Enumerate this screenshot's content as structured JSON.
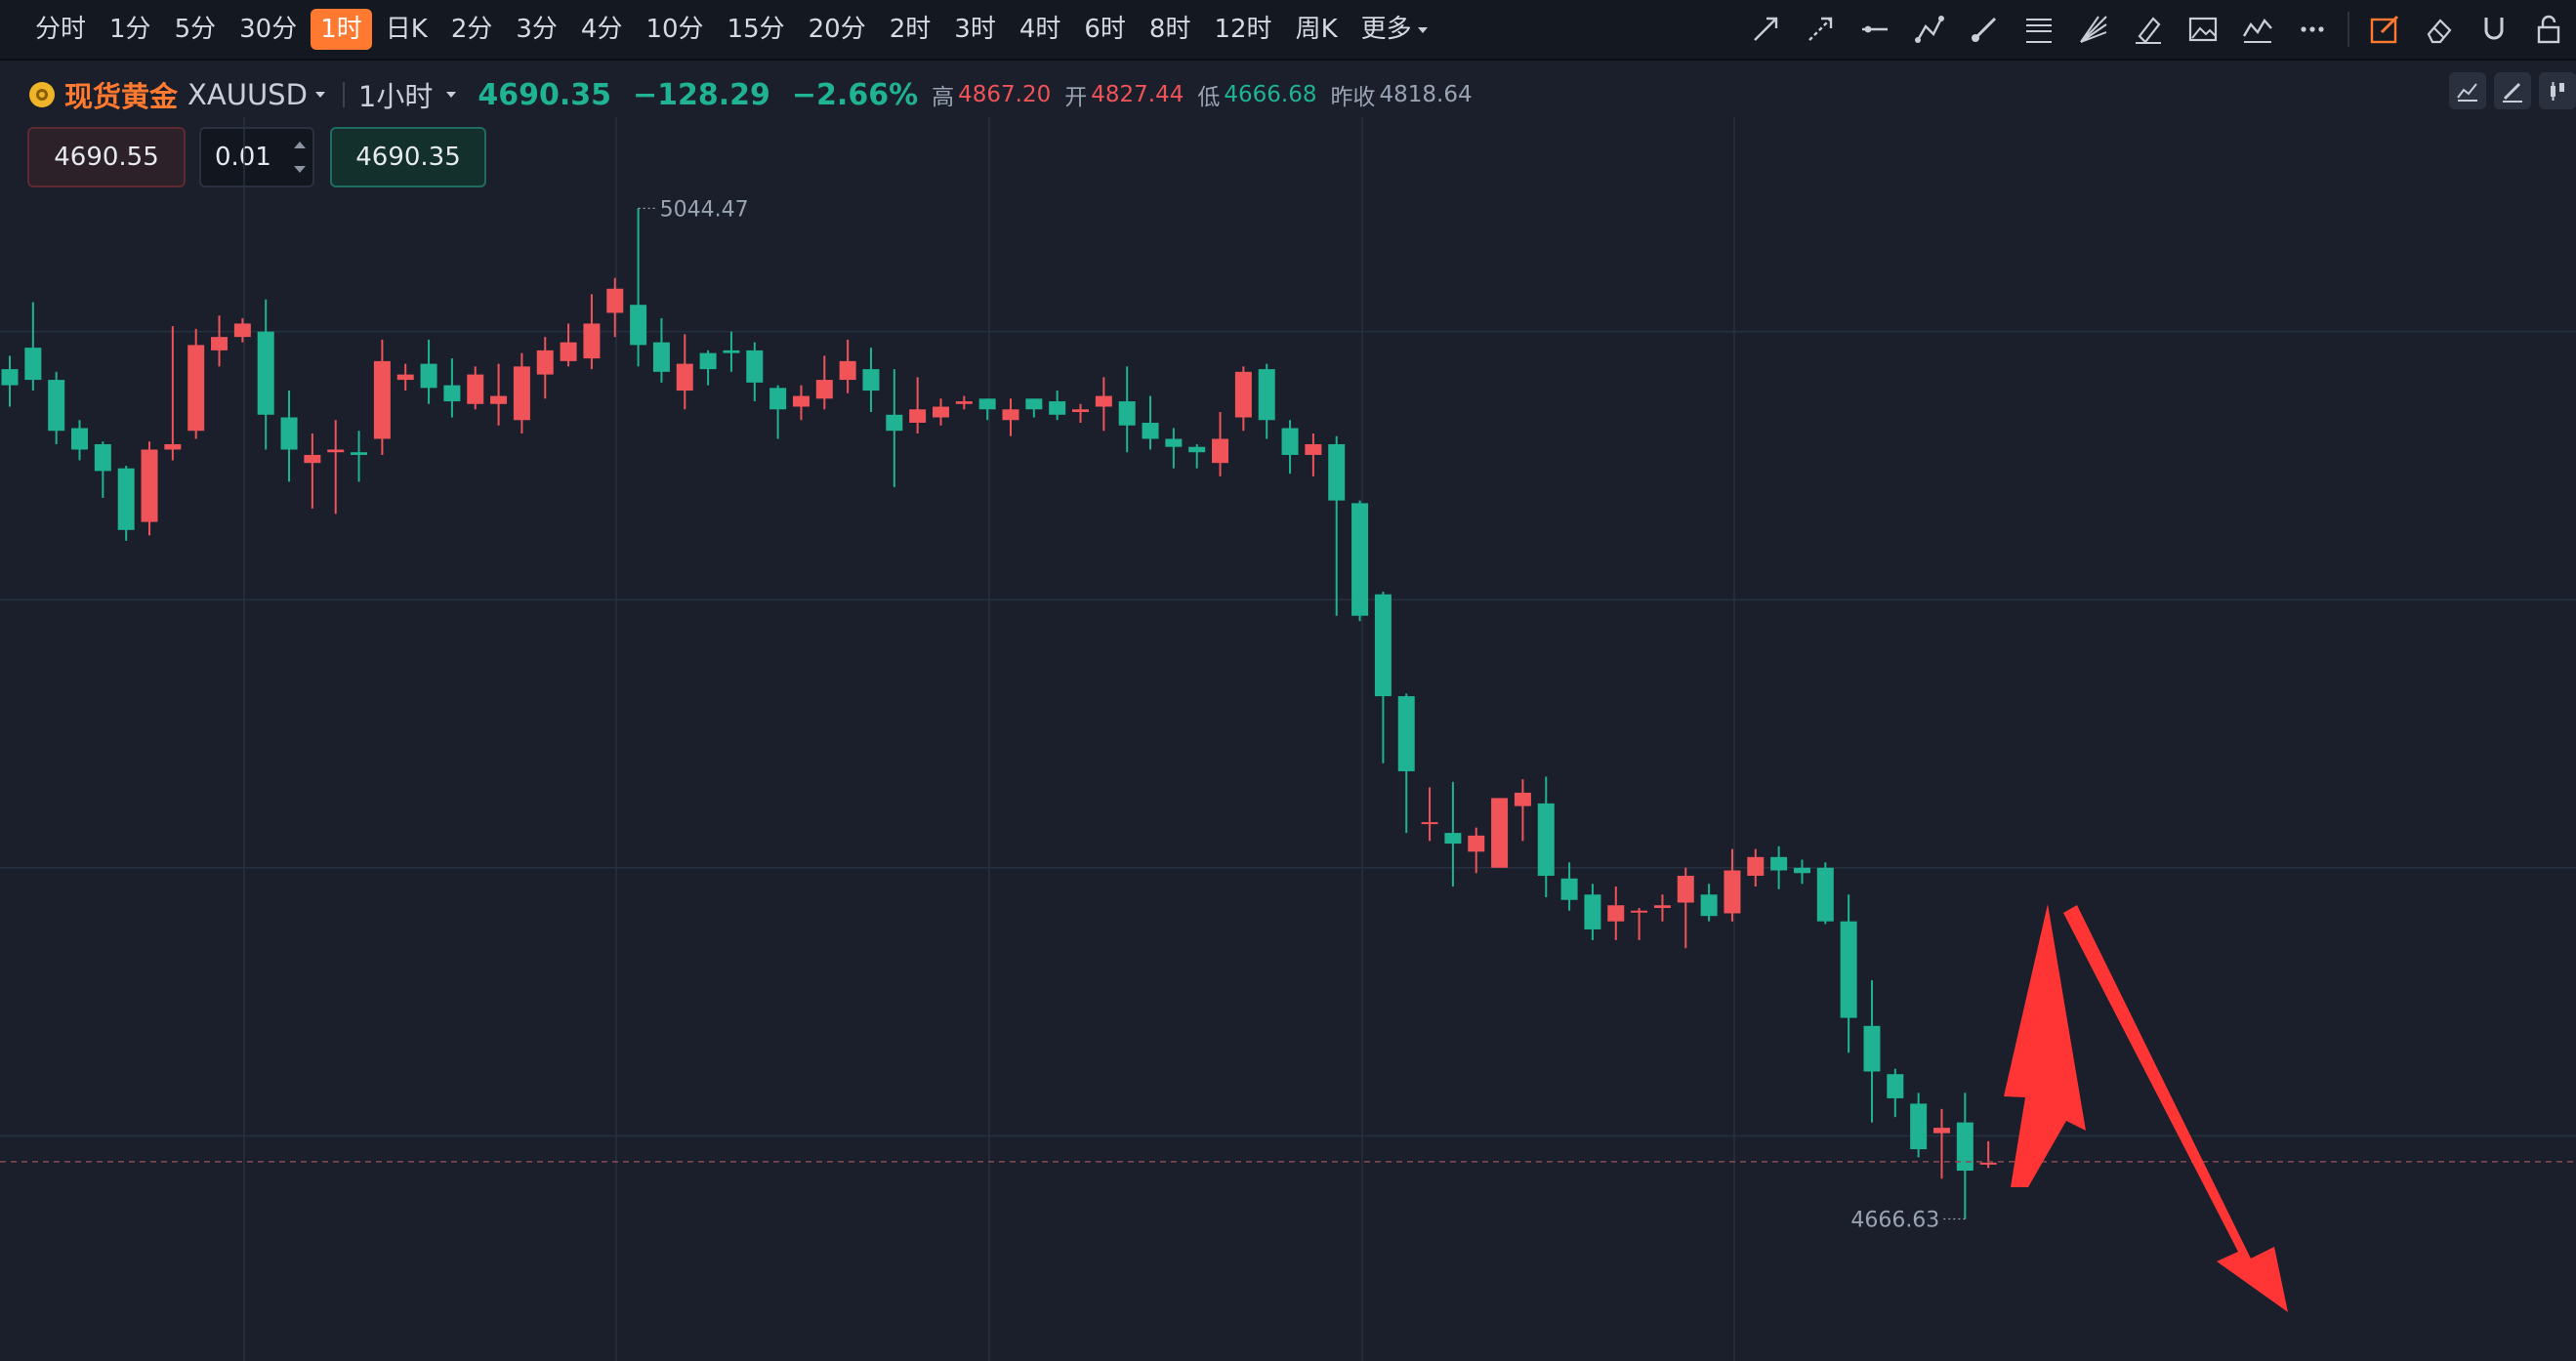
{
  "toolbar": {
    "periods": [
      "分时",
      "1分",
      "5分",
      "30分",
      "1时",
      "日K",
      "2分",
      "3分",
      "4分",
      "10分",
      "15分",
      "20分",
      "2时",
      "3时",
      "4时",
      "6时",
      "8时",
      "12时",
      "周K",
      "更多"
    ],
    "active_period": "1时",
    "tools": [
      "trend-line-icon",
      "ray-icon",
      "horizontal-line-icon",
      "polyline-icon",
      "brush-icon",
      "fibonacci-icon",
      "fan-icon",
      "highlighter-icon",
      "image-icon",
      "wave-icon",
      "more-icon",
      "edit-icon",
      "eraser-icon",
      "magnet-icon",
      "lock-icon"
    ]
  },
  "symbol": {
    "name": "现货黄金",
    "code": "XAUUSD",
    "timeframe": "1小时",
    "price": "4690.35",
    "change": "−128.29",
    "change_pct": "−2.66%",
    "high_label": "高",
    "high": "4867.20",
    "open_label": "开",
    "open": "4827.44",
    "low_label": "低",
    "low": "4666.68",
    "prev_label": "昨收",
    "prev": "4818.64"
  },
  "trade": {
    "sell_price": "4690.55",
    "quantity": "0.01",
    "buy_price": "4690.35"
  },
  "colors": {
    "up": "#f05358",
    "down": "#1fb394",
    "background": "#1a1f2b",
    "accent": "#ff7a30",
    "arrow": "#ff3030"
  },
  "chart_data": {
    "type": "candlestick",
    "title": "",
    "max_label": "5044.47",
    "min_label": "4666.63",
    "last_price": 4690.35,
    "ylim": [
      4616,
      5080
    ],
    "grid": true,
    "candles": [
      [
        4986,
        4991,
        4972,
        4980
      ],
      [
        4994,
        5011,
        4978,
        4982
      ],
      [
        4982,
        4985,
        4958,
        4963
      ],
      [
        4964,
        4967,
        4952,
        4956
      ],
      [
        4958,
        4959,
        4938,
        4948
      ],
      [
        4949,
        4950,
        4922,
        4926
      ],
      [
        4929,
        4959,
        4924,
        4956
      ],
      [
        4956,
        5002,
        4952,
        4958
      ],
      [
        4963,
        5001,
        4960,
        4995
      ],
      [
        4993,
        5006,
        4987,
        4998
      ],
      [
        4998,
        5005,
        4996,
        5003
      ],
      [
        5000,
        5012,
        4956,
        4969
      ],
      [
        4968,
        4978,
        4944,
        4956
      ],
      [
        4951,
        4962,
        4934,
        4954
      ],
      [
        4955,
        4967,
        4932,
        4956
      ],
      [
        4955,
        4963,
        4944,
        4954
      ],
      [
        4960,
        4997,
        4954,
        4989
      ],
      [
        4982,
        4988,
        4978,
        4984
      ],
      [
        4988,
        4997,
        4973,
        4979
      ],
      [
        4980,
        4990,
        4968,
        4974
      ],
      [
        4973,
        4987,
        4971,
        4984
      ],
      [
        4973,
        4988,
        4965,
        4976
      ],
      [
        4967,
        4992,
        4962,
        4987
      ],
      [
        4984,
        4998,
        4975,
        4993
      ],
      [
        4989,
        5003,
        4987,
        4996
      ],
      [
        4990,
        5014,
        4986,
        5003
      ],
      [
        5007,
        5020,
        4998,
        5016
      ],
      [
        5010,
        5046,
        4987,
        4995
      ],
      [
        4996,
        5005,
        4981,
        4985
      ],
      [
        4978,
        4999,
        4971,
        4988
      ],
      [
        4992,
        4993,
        4980,
        4986
      ],
      [
        4993,
        5000,
        4985,
        4992
      ],
      [
        4993,
        4996,
        4974,
        4981
      ],
      [
        4979,
        4980,
        4960,
        4971
      ],
      [
        4972,
        4980,
        4967,
        4976
      ],
      [
        4975,
        4991,
        4971,
        4982
      ],
      [
        4982,
        4997,
        4977,
        4989
      ],
      [
        4986,
        4994,
        4970,
        4978
      ],
      [
        4969,
        4986,
        4942,
        4963
      ],
      [
        4966,
        4983,
        4962,
        4971
      ],
      [
        4968,
        4975,
        4965,
        4972
      ],
      [
        4973,
        4976,
        4971,
        4974
      ],
      [
        4975,
        4975,
        4967,
        4971
      ],
      [
        4967,
        4975,
        4961,
        4971
      ],
      [
        4975,
        4975,
        4968,
        4971
      ],
      [
        4974,
        4978,
        4967,
        4969
      ],
      [
        4970,
        4973,
        4966,
        4971
      ],
      [
        4972,
        4983,
        4963,
        4976
      ],
      [
        4974,
        4987,
        4955,
        4965
      ],
      [
        4966,
        4976,
        4956,
        4960
      ],
      [
        4960,
        4964,
        4949,
        4957
      ],
      [
        4957,
        4958,
        4949,
        4955
      ],
      [
        4951,
        4970,
        4946,
        4960
      ],
      [
        4968,
        4987,
        4963,
        4985
      ],
      [
        4986,
        4988,
        4960,
        4967
      ],
      [
        4964,
        4967,
        4947,
        4954
      ],
      [
        4954,
        4962,
        4946,
        4958
      ],
      [
        4958,
        4961,
        4894,
        4937
      ],
      [
        4936,
        4937,
        4892,
        4894
      ],
      [
        4902,
        4903,
        4839,
        4864
      ],
      [
        4864,
        4865,
        4813,
        4836
      ],
      [
        4817,
        4830,
        4810,
        4817
      ],
      [
        4813,
        4832,
        4793,
        4809
      ],
      [
        4806,
        4815,
        4798,
        4812
      ],
      [
        4800,
        4826,
        4800,
        4826
      ],
      [
        4823,
        4833,
        4810,
        4828
      ],
      [
        4824,
        4834,
        4789,
        4797
      ],
      [
        4796,
        4802,
        4784,
        4788
      ],
      [
        4790,
        4794,
        4773,
        4777
      ],
      [
        4780,
        4793,
        4773,
        4786
      ],
      [
        4784,
        4785,
        4773,
        4784
      ],
      [
        4785,
        4790,
        4780,
        4786
      ],
      [
        4787,
        4800,
        4770,
        4797
      ],
      [
        4790,
        4794,
        4780,
        4782
      ],
      [
        4783,
        4807,
        4780,
        4799
      ],
      [
        4797,
        4807,
        4793,
        4804
      ],
      [
        4804,
        4808,
        4792,
        4799
      ],
      [
        4800,
        4803,
        4794,
        4798
      ],
      [
        4800,
        4802,
        4779,
        4780
      ],
      [
        4780,
        4790,
        4731,
        4744
      ],
      [
        4741,
        4758,
        4705,
        4724
      ],
      [
        4723,
        4725,
        4707,
        4714
      ],
      [
        4712,
        4716,
        4692,
        4695
      ],
      [
        4701,
        4710,
        4684,
        4703
      ],
      [
        4705,
        4716,
        4669,
        4687
      ],
      [
        4690,
        4698,
        4688,
        4690
      ]
    ]
  }
}
